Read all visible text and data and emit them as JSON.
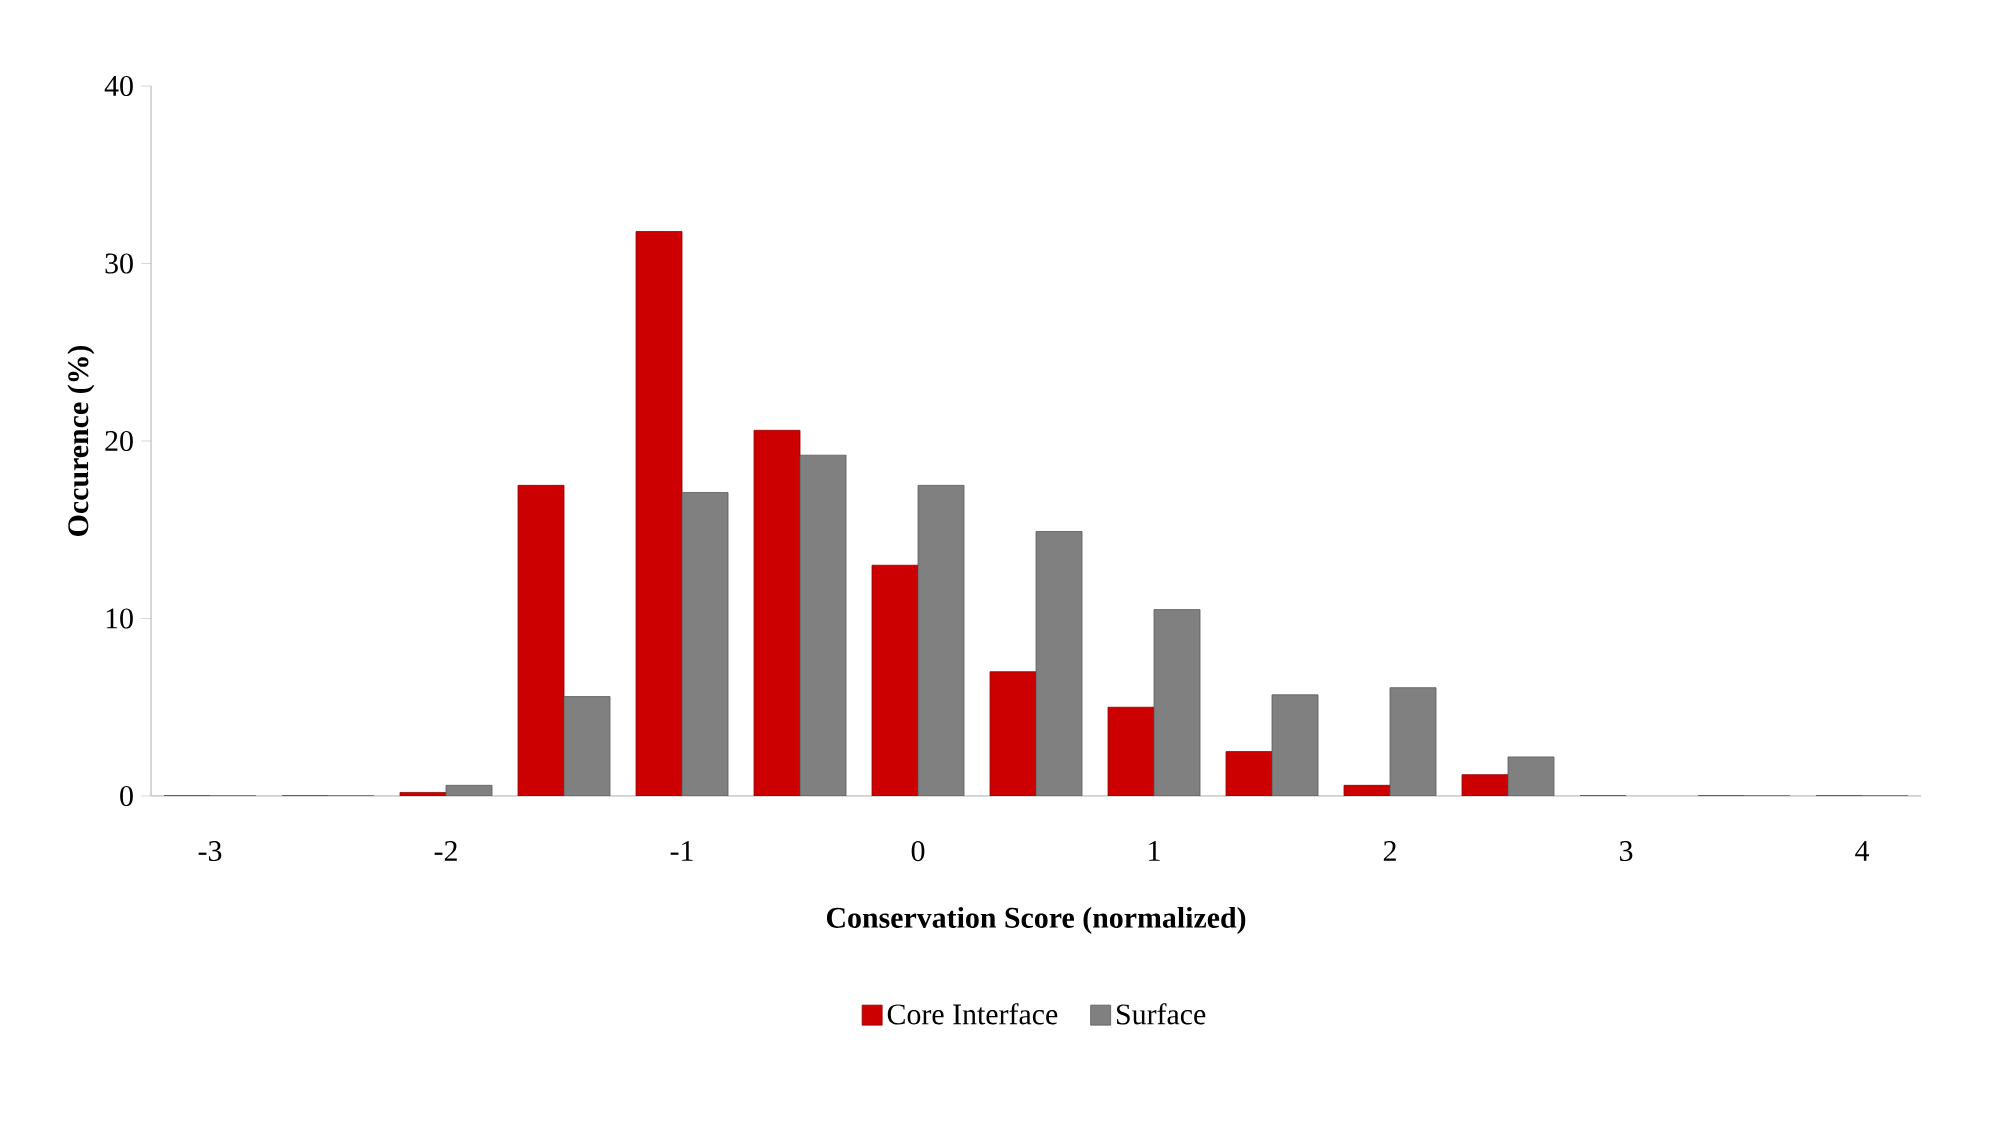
{
  "chart_data": {
    "type": "bar",
    "xlabel": "Conservation Score (normalized)",
    "ylabel": "Occurence (%)",
    "categories": [
      "-3",
      null,
      "-2",
      null,
      "-1",
      null,
      "0",
      null,
      "1",
      null,
      "2",
      null,
      "3",
      null,
      "4"
    ],
    "series": [
      {
        "name": "Core Interface",
        "color": "#cc0000",
        "values": [
          0,
          0,
          0.2,
          17.5,
          31.8,
          20.6,
          13.0,
          7.0,
          5.0,
          2.5,
          0.6,
          1.2,
          0,
          0,
          0
        ]
      },
      {
        "name": "Surface",
        "color": "#808080",
        "values": [
          0,
          0,
          0.6,
          5.6,
          17.1,
          19.2,
          17.5,
          14.9,
          10.5,
          5.7,
          6.1,
          2.2,
          null,
          0,
          0
        ]
      }
    ],
    "ylim": [
      0,
      40
    ],
    "yticks": [
      0,
      10,
      20,
      30,
      40
    ],
    "legend": "bottom"
  }
}
